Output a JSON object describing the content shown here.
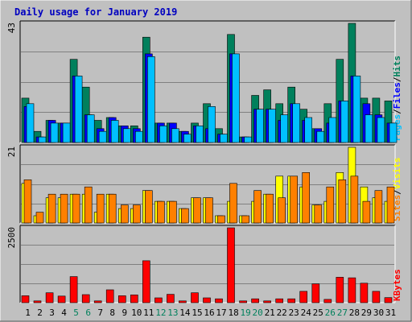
{
  "title": "Daily usage for January 2019",
  "colors": {
    "frame_bg": "#c0c0c0",
    "plot_bg": "#c0c0c0",
    "grid": "#808080",
    "title_blue": "#0000c0",
    "hits": "#00805c",
    "files": "#0000ff",
    "pages": "#00c0ff",
    "visits": "#ffff00",
    "sites": "#ff8000",
    "kbytes": "#ff0000",
    "weekend_day": "#00805c"
  },
  "chart_data": [
    {
      "type": "bar",
      "id": "hits_files_pages",
      "max_label": "43",
      "ylim": [
        0,
        43
      ],
      "legend": [
        "Pages",
        "Files",
        "Hits"
      ],
      "legend_separator": "/",
      "categories": [
        "1",
        "2",
        "3",
        "4",
        "5",
        "6",
        "7",
        "8",
        "9",
        "10",
        "11",
        "12",
        "13",
        "14",
        "15",
        "16",
        "17",
        "18",
        "19",
        "20",
        "21",
        "22",
        "23",
        "24",
        "25",
        "26",
        "27",
        "28",
        "29",
        "30",
        "31"
      ],
      "series": [
        {
          "name": "Hits",
          "values": [
            16,
            4,
            8,
            7,
            30,
            20,
            8,
            9,
            6,
            6,
            38,
            7,
            7,
            4,
            7,
            14,
            5,
            39,
            2,
            17,
            19,
            14,
            20,
            12,
            5,
            14,
            30,
            43,
            16,
            16,
            15
          ]
        },
        {
          "name": "Files",
          "values": [
            13,
            2,
            8,
            7,
            24,
            10,
            5,
            9,
            6,
            5,
            32,
            7,
            7,
            4,
            6,
            5,
            3,
            32,
            2,
            12,
            12,
            8,
            14,
            8,
            5,
            7,
            15,
            24,
            14,
            10,
            7
          ]
        },
        {
          "name": "Pages",
          "values": [
            14,
            2,
            7,
            7,
            24,
            10,
            4,
            8,
            5,
            4,
            31,
            6,
            5,
            3,
            6,
            13,
            3,
            32,
            2,
            12,
            12,
            10,
            14,
            9,
            4,
            9,
            15,
            24,
            10,
            9,
            7
          ]
        }
      ]
    },
    {
      "type": "bar",
      "id": "visits_sites",
      "max_label": "21",
      "ylim": [
        0,
        21
      ],
      "legend": [
        "Sites",
        "Visits"
      ],
      "legend_separator": "/",
      "categories": [
        "1",
        "2",
        "3",
        "4",
        "5",
        "6",
        "7",
        "8",
        "9",
        "10",
        "11",
        "12",
        "13",
        "14",
        "15",
        "16",
        "17",
        "18",
        "19",
        "20",
        "21",
        "22",
        "23",
        "24",
        "25",
        "26",
        "27",
        "28",
        "29",
        "30",
        "31"
      ],
      "series": [
        {
          "name": "Visits",
          "values": [
            11,
            2,
            7,
            7,
            8,
            8,
            3,
            8,
            4,
            4,
            9,
            6,
            6,
            4,
            7,
            7,
            2,
            6,
            2,
            6,
            8,
            13,
            13,
            10,
            5,
            6,
            14,
            21,
            10,
            7,
            6
          ]
        },
        {
          "name": "Sites",
          "values": [
            12,
            3,
            8,
            8,
            8,
            10,
            8,
            8,
            5,
            5,
            9,
            6,
            6,
            4,
            7,
            7,
            2,
            11,
            2,
            9,
            8,
            7,
            13,
            14,
            5,
            10,
            12,
            13,
            6,
            9,
            10
          ]
        }
      ]
    },
    {
      "type": "bar",
      "id": "kbytes",
      "max_label": "2500",
      "ylim": [
        0,
        2500
      ],
      "legend": [
        "KBytes"
      ],
      "categories": [
        "1",
        "2",
        "3",
        "4",
        "5",
        "6",
        "7",
        "8",
        "9",
        "10",
        "11",
        "12",
        "13",
        "14",
        "15",
        "16",
        "17",
        "18",
        "19",
        "20",
        "21",
        "22",
        "23",
        "24",
        "25",
        "26",
        "27",
        "28",
        "29",
        "30",
        "31"
      ],
      "series": [
        {
          "name": "KBytes",
          "values": [
            230,
            60,
            330,
            220,
            870,
            270,
            60,
            430,
            230,
            260,
            1400,
            160,
            280,
            60,
            330,
            160,
            130,
            2500,
            60,
            130,
            60,
            130,
            130,
            380,
            630,
            110,
            850,
            830,
            650,
            380,
            170
          ]
        }
      ]
    }
  ],
  "weekend_days": [
    "5",
    "6",
    "12",
    "13",
    "19",
    "20",
    "26",
    "27"
  ]
}
